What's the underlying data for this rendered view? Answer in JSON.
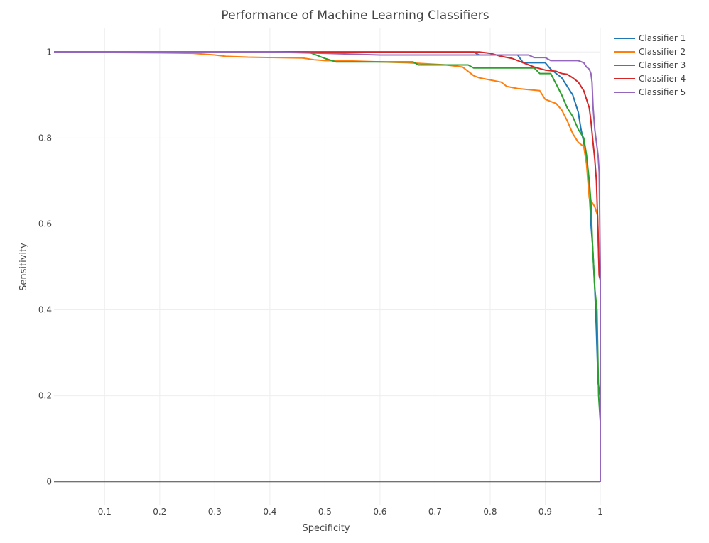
{
  "chart_data": {
    "type": "line",
    "title": "Performance of Machine Learning Classifiers",
    "xlabel": "Specificity",
    "ylabel": "Sensitivity",
    "xlim": [
      0.008,
      1.0
    ],
    "ylim": [
      -0.055,
      1.055
    ],
    "x_ticks": [
      0.1,
      0.2,
      0.3,
      0.4,
      0.5,
      0.6,
      0.7,
      0.8,
      0.9,
      1
    ],
    "x_tick_labels": [
      "0.1",
      "0.2",
      "0.3",
      "0.4",
      "0.5",
      "0.6",
      "0.7",
      "0.8",
      "0.9",
      "1"
    ],
    "y_ticks": [
      0,
      0.2,
      0.4,
      0.6,
      0.8,
      1
    ],
    "y_tick_labels": [
      "0",
      "0.2",
      "0.4",
      "0.6",
      "0.8",
      "1"
    ],
    "grid": true,
    "legend_position": "top-right",
    "series": [
      {
        "name": "Classifier 1",
        "color": "#1f77b4",
        "points": [
          [
            0.008,
            1.0
          ],
          [
            0.77,
            1.0
          ],
          [
            0.78,
            0.993
          ],
          [
            0.85,
            0.993
          ],
          [
            0.86,
            0.975
          ],
          [
            0.9,
            0.975
          ],
          [
            0.91,
            0.96
          ],
          [
            0.93,
            0.94
          ],
          [
            0.94,
            0.92
          ],
          [
            0.95,
            0.9
          ],
          [
            0.96,
            0.86
          ],
          [
            0.965,
            0.82
          ],
          [
            0.97,
            0.79
          ],
          [
            0.975,
            0.75
          ],
          [
            0.98,
            0.68
          ],
          [
            0.983,
            0.6
          ],
          [
            0.986,
            0.55
          ],
          [
            0.99,
            0.45
          ],
          [
            0.993,
            0.35
          ],
          [
            0.996,
            0.23
          ],
          [
            1.0,
            0.2
          ],
          [
            1.0,
            0.0
          ]
        ]
      },
      {
        "name": "Classifier 2",
        "color": "#ff7f0e",
        "points": [
          [
            0.008,
            1.0
          ],
          [
            0.2,
            0.998
          ],
          [
            0.26,
            0.997
          ],
          [
            0.3,
            0.993
          ],
          [
            0.32,
            0.99
          ],
          [
            0.36,
            0.988
          ],
          [
            0.46,
            0.986
          ],
          [
            0.48,
            0.982
          ],
          [
            0.5,
            0.98
          ],
          [
            0.55,
            0.979
          ],
          [
            0.65,
            0.975
          ],
          [
            0.72,
            0.97
          ],
          [
            0.75,
            0.965
          ],
          [
            0.76,
            0.955
          ],
          [
            0.77,
            0.945
          ],
          [
            0.78,
            0.94
          ],
          [
            0.8,
            0.935
          ],
          [
            0.82,
            0.93
          ],
          [
            0.83,
            0.92
          ],
          [
            0.85,
            0.915
          ],
          [
            0.89,
            0.91
          ],
          [
            0.9,
            0.89
          ],
          [
            0.91,
            0.885
          ],
          [
            0.92,
            0.88
          ],
          [
            0.93,
            0.865
          ],
          [
            0.94,
            0.84
          ],
          [
            0.95,
            0.81
          ],
          [
            0.96,
            0.79
          ],
          [
            0.97,
            0.78
          ],
          [
            0.975,
            0.74
          ],
          [
            0.98,
            0.66
          ],
          [
            0.985,
            0.65
          ],
          [
            0.99,
            0.64
          ],
          [
            0.995,
            0.62
          ],
          [
            0.998,
            0.48
          ],
          [
            1.0,
            0.47
          ],
          [
            1.0,
            0.0
          ]
        ]
      },
      {
        "name": "Classifier 3",
        "color": "#2ca02c",
        "points": [
          [
            0.008,
            1.0
          ],
          [
            0.47,
            1.0
          ],
          [
            0.5,
            0.985
          ],
          [
            0.52,
            0.977
          ],
          [
            0.66,
            0.977
          ],
          [
            0.67,
            0.97
          ],
          [
            0.76,
            0.97
          ],
          [
            0.77,
            0.963
          ],
          [
            0.88,
            0.963
          ],
          [
            0.89,
            0.95
          ],
          [
            0.91,
            0.95
          ],
          [
            0.92,
            0.925
          ],
          [
            0.93,
            0.9
          ],
          [
            0.94,
            0.87
          ],
          [
            0.95,
            0.85
          ],
          [
            0.96,
            0.82
          ],
          [
            0.97,
            0.8
          ],
          [
            0.975,
            0.76
          ],
          [
            0.98,
            0.7
          ],
          [
            0.983,
            0.65
          ],
          [
            0.986,
            0.55
          ],
          [
            0.99,
            0.45
          ],
          [
            0.994,
            0.4
          ],
          [
            0.997,
            0.2
          ],
          [
            1.0,
            0.14
          ],
          [
            1.0,
            0.0
          ]
        ]
      },
      {
        "name": "Classifier 4",
        "color": "#d62728",
        "points": [
          [
            0.008,
            1.0
          ],
          [
            0.78,
            1.0
          ],
          [
            0.8,
            0.997
          ],
          [
            0.82,
            0.99
          ],
          [
            0.84,
            0.985
          ],
          [
            0.86,
            0.975
          ],
          [
            0.88,
            0.965
          ],
          [
            0.9,
            0.958
          ],
          [
            0.92,
            0.955
          ],
          [
            0.93,
            0.95
          ],
          [
            0.94,
            0.948
          ],
          [
            0.95,
            0.94
          ],
          [
            0.96,
            0.93
          ],
          [
            0.97,
            0.91
          ],
          [
            0.975,
            0.89
          ],
          [
            0.98,
            0.87
          ],
          [
            0.983,
            0.84
          ],
          [
            0.986,
            0.8
          ],
          [
            0.99,
            0.75
          ],
          [
            0.993,
            0.7
          ],
          [
            0.996,
            0.58
          ],
          [
            0.998,
            0.48
          ],
          [
            1.0,
            0.47
          ],
          [
            1.0,
            0.0
          ]
        ]
      },
      {
        "name": "Classifier 5",
        "color": "#9467bd",
        "points": [
          [
            0.008,
            1.0
          ],
          [
            0.4,
            1.0
          ],
          [
            0.5,
            0.997
          ],
          [
            0.6,
            0.993
          ],
          [
            0.87,
            0.993
          ],
          [
            0.88,
            0.987
          ],
          [
            0.9,
            0.987
          ],
          [
            0.91,
            0.98
          ],
          [
            0.96,
            0.98
          ],
          [
            0.97,
            0.975
          ],
          [
            0.975,
            0.965
          ],
          [
            0.98,
            0.96
          ],
          [
            0.983,
            0.95
          ],
          [
            0.985,
            0.93
          ],
          [
            0.987,
            0.87
          ],
          [
            0.99,
            0.82
          ],
          [
            0.993,
            0.79
          ],
          [
            0.996,
            0.76
          ],
          [
            0.998,
            0.72
          ],
          [
            1.0,
            0.5
          ],
          [
            1.0,
            0.0
          ]
        ]
      }
    ]
  }
}
